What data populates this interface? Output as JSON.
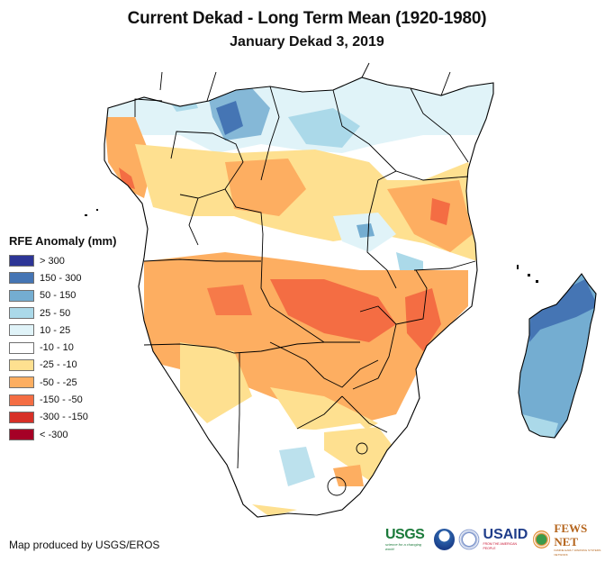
{
  "title": "Current Dekad - Long Term Mean (1920-1980)",
  "subtitle": "January Dekad 3, 2019",
  "legend": {
    "title": "RFE Anomaly (mm)",
    "items": [
      {
        "label": "> 300",
        "color": "#2d3596"
      },
      {
        "label": "150 - 300",
        "color": "#4575b4"
      },
      {
        "label": "50 - 150",
        "color": "#74add1"
      },
      {
        "label": "25 - 50",
        "color": "#abd9e9"
      },
      {
        "label": "10 - 25",
        "color": "#e0f3f8"
      },
      {
        "label": "-10 - 10",
        "color": "#ffffff"
      },
      {
        "label": "-25 - -10",
        "color": "#fee090"
      },
      {
        "label": "-50 - -25",
        "color": "#fdae61"
      },
      {
        "label": "-150 - -50",
        "color": "#f46d43"
      },
      {
        "label": "-300 - -150",
        "color": "#d73027"
      },
      {
        "label": "< -300",
        "color": "#a50026"
      }
    ]
  },
  "credit": "Map produced by USGS/EROS",
  "logos": {
    "usgs": {
      "name": "USGS",
      "tagline": "science for a changing world"
    },
    "noaa": {
      "name": "NOAA"
    },
    "usaid": {
      "name": "USAID",
      "tagline": "FROM THE AMERICAN PEOPLE"
    },
    "fews": {
      "name": "FEWS NET",
      "tagline": "FAMINE EARLY WARNING SYSTEMS NETWORK"
    }
  }
}
